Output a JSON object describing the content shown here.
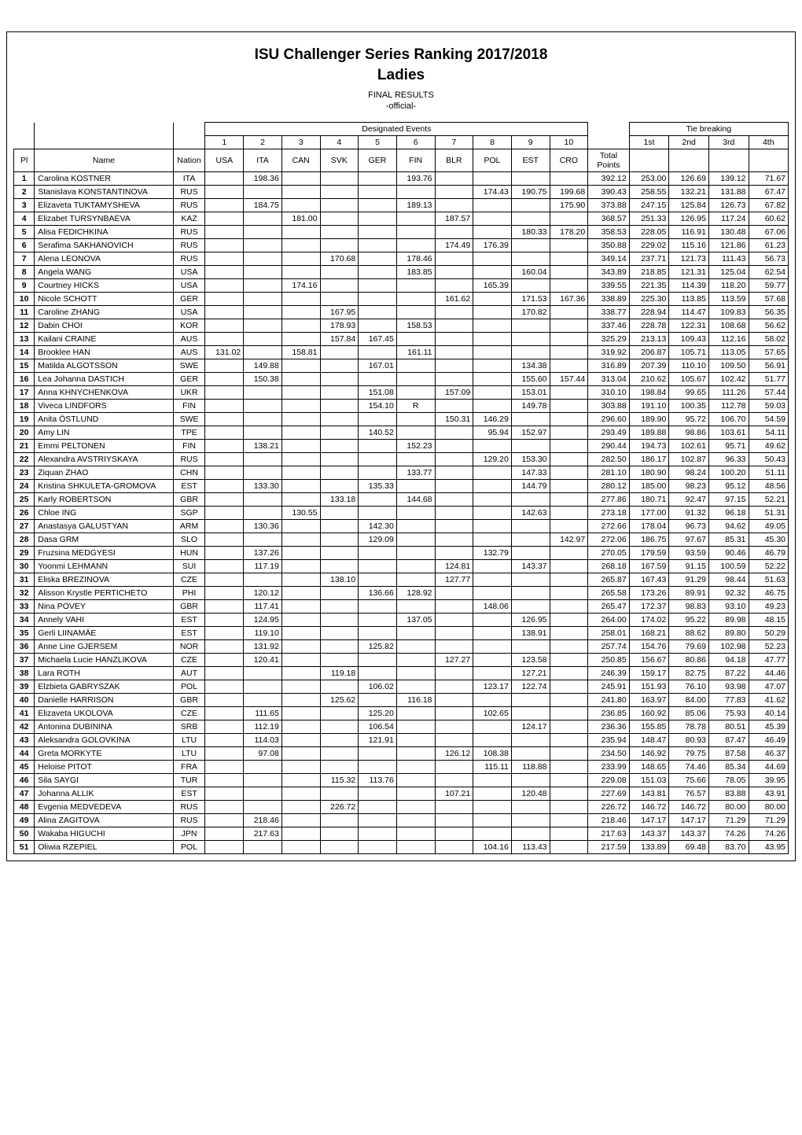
{
  "title_line1": "ISU Challenger Series Ranking 2017/2018",
  "title_line2": "Ladies",
  "subtitle1": "FINAL RESULTS",
  "subtitle2": "-official-",
  "group_designated": "Designated Events",
  "group_tiebreak": "Tie breaking",
  "headers": {
    "pl": "Pl",
    "name": "Name",
    "nation": "Nation",
    "events_num": [
      "1",
      "2",
      "3",
      "4",
      "5",
      "6",
      "7",
      "8",
      "9",
      "10"
    ],
    "events_code": [
      "USA",
      "ITA",
      "CAN",
      "SVK",
      "GER",
      "FIN",
      "BLR",
      "POL",
      "EST",
      "CRO"
    ],
    "total_top": "Total",
    "total_bot": "Points",
    "tb": [
      "1st",
      "2nd",
      "3rd",
      "4th"
    ]
  },
  "rows": [
    {
      "pl": 1,
      "name": "Carolina KOSTNER",
      "nat": "ITA",
      "ev": [
        "",
        "198.36",
        "",
        "",
        "",
        "193.76",
        "",
        "",
        "",
        ""
      ],
      "tot": "392.12",
      "tb": [
        "253.00",
        "126.69",
        "139.12",
        "71.67"
      ]
    },
    {
      "pl": 2,
      "name": "Stanislava KONSTANTINOVA",
      "nat": "RUS",
      "ev": [
        "",
        "",
        "",
        "",
        "",
        "",
        "",
        "174.43",
        "190.75",
        "199.68"
      ],
      "tot": "390.43",
      "tb": [
        "258.55",
        "132.21",
        "131.88",
        "67.47"
      ]
    },
    {
      "pl": 3,
      "name": "Elizaveta TUKTAMYSHEVA",
      "nat": "RUS",
      "ev": [
        "",
        "184.75",
        "",
        "",
        "",
        "189.13",
        "",
        "",
        "",
        "175.90"
      ],
      "tot": "373.88",
      "tb": [
        "247.15",
        "125.84",
        "126.73",
        "67.82"
      ]
    },
    {
      "pl": 4,
      "name": "Elizabet TURSYNBAEVA",
      "nat": "KAZ",
      "ev": [
        "",
        "",
        "181.00",
        "",
        "",
        "",
        "187.57",
        "",
        "",
        ""
      ],
      "tot": "368.57",
      "tb": [
        "251.33",
        "126.95",
        "117.24",
        "60.62"
      ]
    },
    {
      "pl": 5,
      "name": "Alisa FEDICHKINA",
      "nat": "RUS",
      "ev": [
        "",
        "",
        "",
        "",
        "",
        "",
        "",
        "",
        "180.33",
        "178.20"
      ],
      "tot": "358.53",
      "tb": [
        "228.05",
        "116.91",
        "130.48",
        "67.06"
      ]
    },
    {
      "pl": 6,
      "name": "Serafima SAKHANOVICH",
      "nat": "RUS",
      "ev": [
        "",
        "",
        "",
        "",
        "",
        "",
        "174.49",
        "176.39",
        "",
        ""
      ],
      "tot": "350.88",
      "tb": [
        "229.02",
        "115.16",
        "121.86",
        "61.23"
      ]
    },
    {
      "pl": 7,
      "name": "Alena LEONOVA",
      "nat": "RUS",
      "ev": [
        "",
        "",
        "",
        "170.68",
        "",
        "178.46",
        "",
        "",
        "",
        ""
      ],
      "tot": "349.14",
      "tb": [
        "237.71",
        "121.73",
        "111.43",
        "56.73"
      ]
    },
    {
      "pl": 8,
      "name": "Angela WANG",
      "nat": "USA",
      "ev": [
        "",
        "",
        "",
        "",
        "",
        "183.85",
        "",
        "",
        "160.04",
        ""
      ],
      "tot": "343.89",
      "tb": [
        "218.85",
        "121.31",
        "125.04",
        "62.54"
      ]
    },
    {
      "pl": 9,
      "name": "Courtney HICKS",
      "nat": "USA",
      "ev": [
        "",
        "",
        "174.16",
        "",
        "",
        "",
        "",
        "165.39",
        "",
        ""
      ],
      "tot": "339.55",
      "tb": [
        "221.35",
        "114.39",
        "118.20",
        "59.77"
      ]
    },
    {
      "pl": 10,
      "name": "Nicole SCHOTT",
      "nat": "GER",
      "ev": [
        "",
        "",
        "",
        "",
        "",
        "",
        "161.62",
        "",
        "171.53",
        "167.36"
      ],
      "tot": "338.89",
      "tb": [
        "225.30",
        "113.85",
        "113.59",
        "57.68"
      ]
    },
    {
      "pl": 11,
      "name": "Caroline ZHANG",
      "nat": "USA",
      "ev": [
        "",
        "",
        "",
        "167.95",
        "",
        "",
        "",
        "",
        "170.82",
        ""
      ],
      "tot": "338.77",
      "tb": [
        "228.94",
        "114.47",
        "109.83",
        "56.35"
      ]
    },
    {
      "pl": 12,
      "name": "Dabin CHOI",
      "nat": "KOR",
      "ev": [
        "",
        "",
        "",
        "178.93",
        "",
        "158.53",
        "",
        "",
        "",
        ""
      ],
      "tot": "337.46",
      "tb": [
        "228.78",
        "122.31",
        "108.68",
        "56.62"
      ]
    },
    {
      "pl": 13,
      "name": "Kailani CRAINE",
      "nat": "AUS",
      "ev": [
        "",
        "",
        "",
        "157.84",
        "167.45",
        "",
        "",
        "",
        "",
        ""
      ],
      "tot": "325.29",
      "tb": [
        "213.13",
        "109.43",
        "112.16",
        "58.02"
      ]
    },
    {
      "pl": 14,
      "name": "Brooklee HAN",
      "nat": "AUS",
      "ev": [
        "131.02",
        "",
        "158.81",
        "",
        "",
        "161.11",
        "",
        "",
        "",
        ""
      ],
      "tot": "319.92",
      "tb": [
        "206.87",
        "105.71",
        "113.05",
        "57.65"
      ]
    },
    {
      "pl": 15,
      "name": "Matilda ALGOTSSON",
      "nat": "SWE",
      "ev": [
        "",
        "149.88",
        "",
        "",
        "167.01",
        "",
        "",
        "",
        "134.38",
        ""
      ],
      "tot": "316.89",
      "tb": [
        "207.39",
        "110.10",
        "109.50",
        "56.91"
      ]
    },
    {
      "pl": 16,
      "name": "Lea Johanna DASTICH",
      "nat": "GER",
      "ev": [
        "",
        "150.38",
        "",
        "",
        "",
        "",
        "",
        "",
        "155.60",
        "157.44"
      ],
      "tot": "313.04",
      "tb": [
        "210.62",
        "105.67",
        "102.42",
        "51.77"
      ]
    },
    {
      "pl": 17,
      "name": "Anna KHNYCHENKOVA",
      "nat": "UKR",
      "ev": [
        "",
        "",
        "",
        "",
        "151.08",
        "",
        "157.09",
        "",
        "153.01",
        ""
      ],
      "tot": "310.10",
      "tb": [
        "198.84",
        "99.65",
        "111.26",
        "57.44"
      ]
    },
    {
      "pl": 18,
      "name": "Viveca LINDFORS",
      "nat": "FIN",
      "ev": [
        "",
        "",
        "",
        "",
        "154.10",
        "R",
        "",
        "",
        "149.78",
        ""
      ],
      "tot": "303.88",
      "tb": [
        "191.10",
        "100.35",
        "112.78",
        "59.03"
      ]
    },
    {
      "pl": 19,
      "name": "Anita ÖSTLUND",
      "nat": "SWE",
      "ev": [
        "",
        "",
        "",
        "",
        "",
        "",
        "150.31",
        "146.29",
        "",
        ""
      ],
      "tot": "296.60",
      "tb": [
        "189.90",
        "95.72",
        "106.70",
        "54.59"
      ]
    },
    {
      "pl": 20,
      "name": "Amy LIN",
      "nat": "TPE",
      "ev": [
        "",
        "",
        "",
        "",
        "140.52",
        "",
        "",
        "95.94",
        "152.97",
        ""
      ],
      "tot": "293.49",
      "tb": [
        "189.88",
        "98.86",
        "103.61",
        "54.11"
      ]
    },
    {
      "pl": 21,
      "name": "Emmi PELTONEN",
      "nat": "FIN",
      "ev": [
        "",
        "138.21",
        "",
        "",
        "",
        "152.23",
        "",
        "",
        "",
        ""
      ],
      "tot": "290.44",
      "tb": [
        "194.73",
        "102.61",
        "95.71",
        "49.62"
      ]
    },
    {
      "pl": 22,
      "name": "Alexandra AVSTRIYSKAYA",
      "nat": "RUS",
      "ev": [
        "",
        "",
        "",
        "",
        "",
        "",
        "",
        "129.20",
        "153.30",
        ""
      ],
      "tot": "282.50",
      "tb": [
        "186.17",
        "102.87",
        "96.33",
        "50.43"
      ]
    },
    {
      "pl": 23,
      "name": "Ziquan ZHAO",
      "nat": "CHN",
      "ev": [
        "",
        "",
        "",
        "",
        "",
        "133.77",
        "",
        "",
        "147.33",
        ""
      ],
      "tot": "281.10",
      "tb": [
        "180.90",
        "98.24",
        "100.20",
        "51.11"
      ]
    },
    {
      "pl": 24,
      "name": "Kristina SHKULETA-GROMOVA",
      "nat": "EST",
      "ev": [
        "",
        "133.30",
        "",
        "",
        "135.33",
        "",
        "",
        "",
        "144.79",
        ""
      ],
      "tot": "280.12",
      "tb": [
        "185.00",
        "98.23",
        "95.12",
        "48.56"
      ]
    },
    {
      "pl": 25,
      "name": "Karly ROBERTSON",
      "nat": "GBR",
      "ev": [
        "",
        "",
        "",
        "133.18",
        "",
        "144.68",
        "",
        "",
        "",
        ""
      ],
      "tot": "277.86",
      "tb": [
        "180.71",
        "92.47",
        "97.15",
        "52.21"
      ]
    },
    {
      "pl": 26,
      "name": "Chloe ING",
      "nat": "SGP",
      "ev": [
        "",
        "",
        "130.55",
        "",
        "",
        "",
        "",
        "",
        "142.63",
        ""
      ],
      "tot": "273.18",
      "tb": [
        "177.00",
        "91.32",
        "96.18",
        "51.31"
      ]
    },
    {
      "pl": 27,
      "name": "Anastasya GALUSTYAN",
      "nat": "ARM",
      "ev": [
        "",
        "130.36",
        "",
        "",
        "142.30",
        "",
        "",
        "",
        "",
        ""
      ],
      "tot": "272.66",
      "tb": [
        "178.04",
        "96.73",
        "94.62",
        "49.05"
      ]
    },
    {
      "pl": 28,
      "name": "Dasa GRM",
      "nat": "SLO",
      "ev": [
        "",
        "",
        "",
        "",
        "129.09",
        "",
        "",
        "",
        "",
        "142.97"
      ],
      "tot": "272.06",
      "tb": [
        "186.75",
        "97.67",
        "85.31",
        "45.30"
      ]
    },
    {
      "pl": 29,
      "name": "Fruzsina MEDGYESI",
      "nat": "HUN",
      "ev": [
        "",
        "137.26",
        "",
        "",
        "",
        "",
        "",
        "132.79",
        "",
        ""
      ],
      "tot": "270.05",
      "tb": [
        "179.59",
        "93.59",
        "90.46",
        "46.79"
      ]
    },
    {
      "pl": 30,
      "name": "Yoonmi LEHMANN",
      "nat": "SUI",
      "ev": [
        "",
        "117.19",
        "",
        "",
        "",
        "",
        "124.81",
        "",
        "143.37",
        ""
      ],
      "tot": "268.18",
      "tb": [
        "167.59",
        "91.15",
        "100.59",
        "52.22"
      ]
    },
    {
      "pl": 31,
      "name": "Eliska BREZINOVA",
      "nat": "CZE",
      "ev": [
        "",
        "",
        "",
        "138.10",
        "",
        "",
        "127.77",
        "",
        "",
        ""
      ],
      "tot": "265.87",
      "tb": [
        "167.43",
        "91.29",
        "98.44",
        "51.63"
      ]
    },
    {
      "pl": 32,
      "name": "Alisson Krystle PERTICHETO",
      "nat": "PHI",
      "ev": [
        "",
        "120.12",
        "",
        "",
        "136.66",
        "128.92",
        "",
        "",
        "",
        ""
      ],
      "tot": "265.58",
      "tb": [
        "173.26",
        "89.91",
        "92.32",
        "46.75"
      ]
    },
    {
      "pl": 33,
      "name": "Nina POVEY",
      "nat": "GBR",
      "ev": [
        "",
        "117.41",
        "",
        "",
        "",
        "",
        "",
        "148.06",
        "",
        ""
      ],
      "tot": "265.47",
      "tb": [
        "172.37",
        "98.83",
        "93.10",
        "49.23"
      ]
    },
    {
      "pl": 34,
      "name": "Annely VAHI",
      "nat": "EST",
      "ev": [
        "",
        "124.95",
        "",
        "",
        "",
        "137.05",
        "",
        "",
        "126.95",
        ""
      ],
      "tot": "264.00",
      "tb": [
        "174.02",
        "95.22",
        "89.98",
        "48.15"
      ]
    },
    {
      "pl": 35,
      "name": "Gerli LIINAMÄE",
      "nat": "EST",
      "ev": [
        "",
        "119.10",
        "",
        "",
        "",
        "",
        "",
        "",
        "138.91",
        ""
      ],
      "tot": "258.01",
      "tb": [
        "168.21",
        "88.62",
        "89.80",
        "50.29"
      ]
    },
    {
      "pl": 36,
      "name": "Anne Line GJERSEM",
      "nat": "NOR",
      "ev": [
        "",
        "131.92",
        "",
        "",
        "125.82",
        "",
        "",
        "",
        "",
        ""
      ],
      "tot": "257.74",
      "tb": [
        "154.76",
        "79.69",
        "102.98",
        "52.23"
      ]
    },
    {
      "pl": 37,
      "name": "Michaela Lucie HANZLIKOVA",
      "nat": "CZE",
      "ev": [
        "",
        "120.41",
        "",
        "",
        "",
        "",
        "127.27",
        "",
        "123.58",
        ""
      ],
      "tot": "250.85",
      "tb": [
        "156.67",
        "80.86",
        "94.18",
        "47.77"
      ]
    },
    {
      "pl": 38,
      "name": "Lara ROTH",
      "nat": "AUT",
      "ev": [
        "",
        "",
        "",
        "119.18",
        "",
        "",
        "",
        "",
        "127.21",
        ""
      ],
      "tot": "246.39",
      "tb": [
        "159.17",
        "82.75",
        "87.22",
        "44.46"
      ]
    },
    {
      "pl": 39,
      "name": "Elzbieta GABRYSZAK",
      "nat": "POL",
      "ev": [
        "",
        "",
        "",
        "",
        "106.02",
        "",
        "",
        "123.17",
        "122.74",
        ""
      ],
      "tot": "245.91",
      "tb": [
        "151.93",
        "76.10",
        "93.98",
        "47.07"
      ]
    },
    {
      "pl": 40,
      "name": "Danielle HARRISON",
      "nat": "GBR",
      "ev": [
        "",
        "",
        "",
        "125.62",
        "",
        "116.18",
        "",
        "",
        "",
        ""
      ],
      "tot": "241.80",
      "tb": [
        "163.97",
        "84.00",
        "77.83",
        "41.62"
      ]
    },
    {
      "pl": 41,
      "name": "Elizaveta UKOLOVA",
      "nat": "CZE",
      "ev": [
        "",
        "111.65",
        "",
        "",
        "125.20",
        "",
        "",
        "102.65",
        "",
        ""
      ],
      "tot": "236.85",
      "tb": [
        "160.92",
        "85.06",
        "75.93",
        "40.14"
      ]
    },
    {
      "pl": 42,
      "name": "Antonina DUBININA",
      "nat": "SRB",
      "ev": [
        "",
        "112.19",
        "",
        "",
        "106.54",
        "",
        "",
        "",
        "124.17",
        ""
      ],
      "tot": "236.36",
      "tb": [
        "155.85",
        "78.78",
        "80.51",
        "45.39"
      ]
    },
    {
      "pl": 43,
      "name": "Aleksandra GOLOVKINA",
      "nat": "LTU",
      "ev": [
        "",
        "114.03",
        "",
        "",
        "121.91",
        "",
        "",
        "",
        "",
        ""
      ],
      "tot": "235.94",
      "tb": [
        "148.47",
        "80.93",
        "87.47",
        "46.49"
      ]
    },
    {
      "pl": 44,
      "name": "Greta MORKYTE",
      "nat": "LTU",
      "ev": [
        "",
        "97.08",
        "",
        "",
        "",
        "",
        "126.12",
        "108.38",
        "",
        ""
      ],
      "tot": "234.50",
      "tb": [
        "146.92",
        "79.75",
        "87.58",
        "46.37"
      ]
    },
    {
      "pl": 45,
      "name": "Heloise PITOT",
      "nat": "FRA",
      "ev": [
        "",
        "",
        "",
        "",
        "",
        "",
        "",
        "115.11",
        "118.88",
        ""
      ],
      "tot": "233.99",
      "tb": [
        "148.65",
        "74.46",
        "85.34",
        "44.69"
      ]
    },
    {
      "pl": 46,
      "name": "Sila SAYGI",
      "nat": "TUR",
      "ev": [
        "",
        "",
        "",
        "115.32",
        "113.76",
        "",
        "",
        "",
        "",
        ""
      ],
      "tot": "229.08",
      "tb": [
        "151.03",
        "75.66",
        "78.05",
        "39.95"
      ]
    },
    {
      "pl": 47,
      "name": "Johanna ALLIK",
      "nat": "EST",
      "ev": [
        "",
        "",
        "",
        "",
        "",
        "",
        "107.21",
        "",
        "120.48",
        ""
      ],
      "tot": "227.69",
      "tb": [
        "143.81",
        "76.57",
        "83.88",
        "43.91"
      ]
    },
    {
      "pl": 48,
      "name": "Evgenia MEDVEDEVA",
      "nat": "RUS",
      "ev": [
        "",
        "",
        "",
        "226.72",
        "",
        "",
        "",
        "",
        "",
        ""
      ],
      "tot": "226.72",
      "tb": [
        "146.72",
        "146.72",
        "80.00",
        "80.00"
      ]
    },
    {
      "pl": 49,
      "name": "Alina ZAGITOVA",
      "nat": "RUS",
      "ev": [
        "",
        "218.46",
        "",
        "",
        "",
        "",
        "",
        "",
        "",
        ""
      ],
      "tot": "218.46",
      "tb": [
        "147.17",
        "147.17",
        "71.29",
        "71.29"
      ]
    },
    {
      "pl": 50,
      "name": "Wakaba HIGUCHI",
      "nat": "JPN",
      "ev": [
        "",
        "217.63",
        "",
        "",
        "",
        "",
        "",
        "",
        "",
        ""
      ],
      "tot": "217.63",
      "tb": [
        "143.37",
        "143.37",
        "74.26",
        "74.26"
      ]
    },
    {
      "pl": 51,
      "name": "Oliwia RZEPIEL",
      "nat": "POL",
      "ev": [
        "",
        "",
        "",
        "",
        "",
        "",
        "",
        "104.16",
        "113.43",
        ""
      ],
      "tot": "217.59",
      "tb": [
        "133.89",
        "69.48",
        "83.70",
        "43.95"
      ]
    }
  ]
}
